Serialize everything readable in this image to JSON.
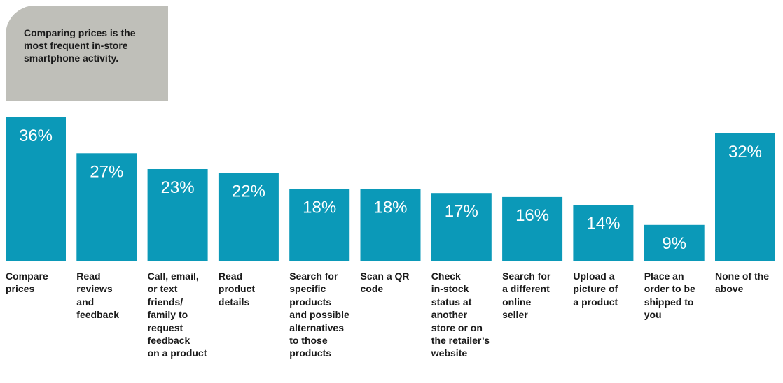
{
  "callout": {
    "text": "Comparing prices is the\nmost frequent in-store\nsmartphone activity.",
    "background_color": "#bfbfb9"
  },
  "colors": {
    "bar": "#0b99b8",
    "value_label": "#ffffff",
    "category_label": "#1a1a1a"
  },
  "chart_data": {
    "type": "bar",
    "title": "",
    "xlabel": "",
    "ylabel": "",
    "ylim": [
      0,
      36
    ],
    "grid": false,
    "categories": [
      "Compare\nprices",
      "Read\nreviews\nand\nfeedback",
      "Call, email,\nor text\nfriends/\nfamily to\nrequest\nfeedback\non a product",
      "Read\nproduct\ndetails",
      "Search for\nspecific\nproducts\nand possible\nalternatives\nto those\nproducts",
      "Scan a QR\ncode",
      "Check\nin-stock\nstatus at\nanother\nstore or on\nthe retailer’s\nwebsite",
      "Search for\na different\nonline\nseller",
      "Upload a\npicture of\na product",
      "Place an\norder to be\nshipped to\nyou",
      "None of the\nabove"
    ],
    "values": [
      36,
      27,
      23,
      22,
      18,
      18,
      17,
      16,
      14,
      9,
      32
    ],
    "value_labels": [
      "36%",
      "27%",
      "23%",
      "22%",
      "18%",
      "18%",
      "17%",
      "16%",
      "14%",
      "9%",
      "32%"
    ]
  }
}
